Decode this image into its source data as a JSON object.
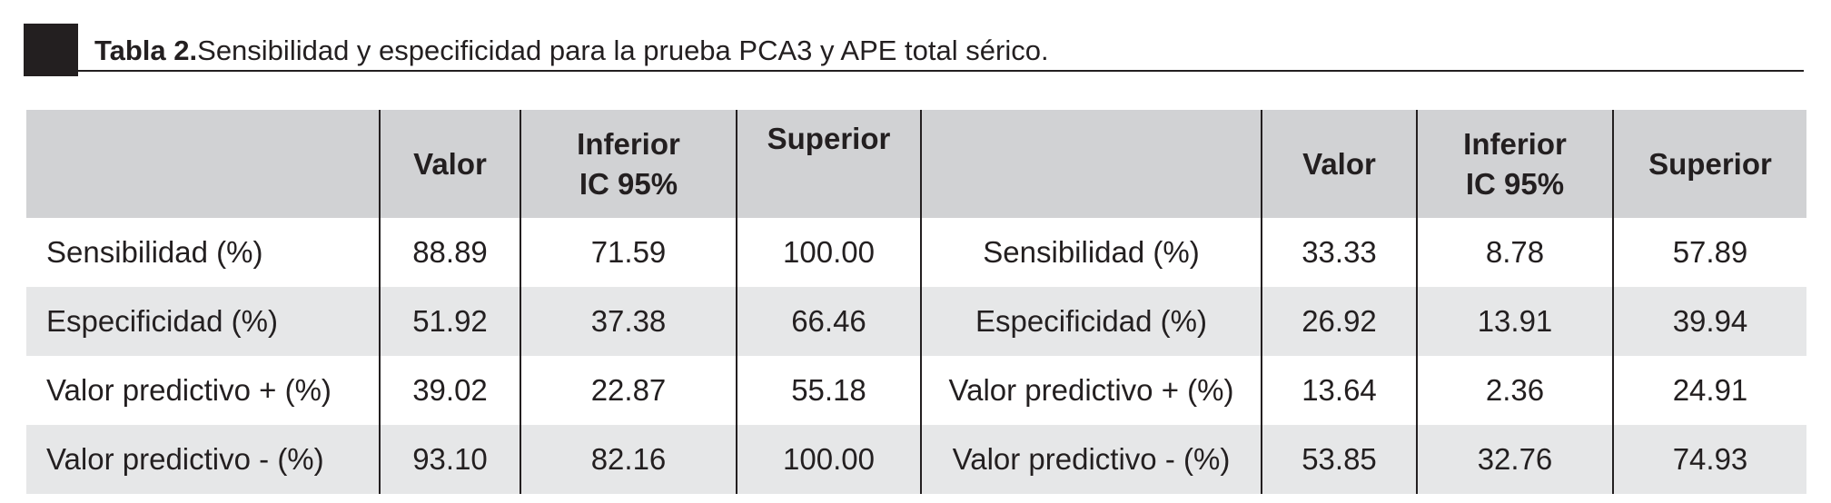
{
  "caption": {
    "label": "Tabla 2.",
    "text": "Sensibilidad y especificidad para la prueba PCA3 y APE total sérico."
  },
  "table": {
    "headers": [
      "",
      "Valor",
      "Inferior IC 95%",
      "Superior",
      "",
      "Valor",
      "Inferior IC 95%",
      "Superior"
    ],
    "header_lines": {
      "inferior_line1": "Inferior",
      "inferior_line2": "IC 95%"
    },
    "rows": [
      [
        "Sensibilidad (%)",
        "88.89",
        "71.59",
        "100.00",
        "Sensibilidad (%)",
        "33.33",
        "8.78",
        "57.89"
      ],
      [
        "Especificidad (%)",
        "51.92",
        "37.38",
        "66.46",
        "Especificidad (%)",
        "26.92",
        "13.91",
        "39.94"
      ],
      [
        "Valor predictivo + (%)",
        "39.02",
        "22.87",
        "55.18",
        "Valor predictivo + (%)",
        "13.64",
        "2.36",
        "24.91"
      ],
      [
        "Valor predictivo - (%)",
        "93.10",
        "82.16",
        "100.00",
        "Valor predictivo - (%)",
        "53.85",
        "32.76",
        "74.93"
      ]
    ]
  },
  "colors": {
    "header_bg": "#d1d2d4",
    "stripe_bg": "#e6e7e8",
    "rule": "#231f20"
  }
}
